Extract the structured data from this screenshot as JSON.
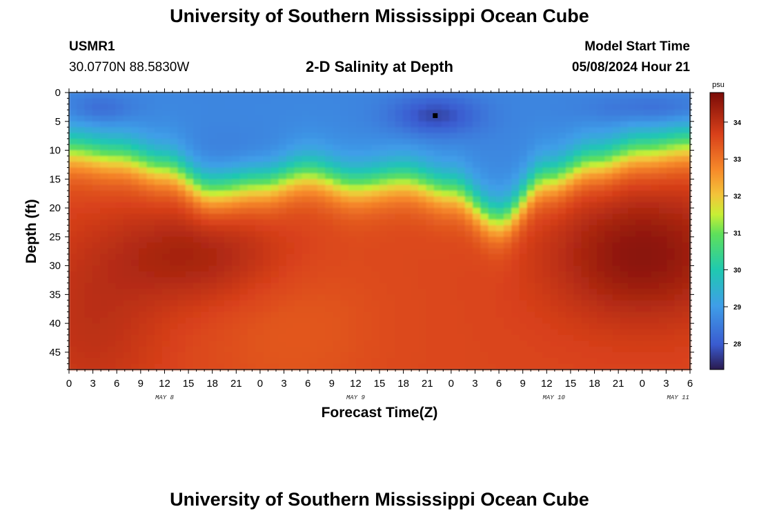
{
  "header": {
    "title": "University of Southern Mississippi Ocean Cube",
    "station_id": "USMR1",
    "coords": "30.0770N  88.5830W",
    "chart_title": "2-D Salinity at Depth",
    "model_start_label": "Model Start Time",
    "model_start_value": "05/08/2024 Hour 21"
  },
  "footer": {
    "title": "University of Southern Mississippi Ocean Cube"
  },
  "chart_data": {
    "type": "heatmap",
    "title": "2-D Salinity at Depth",
    "xlabel": "Forecast Time(Z)",
    "ylabel": "Depth (ft)",
    "x_tick_labels": [
      "0",
      "3",
      "6",
      "9",
      "12",
      "15",
      "18",
      "21",
      "0",
      "3",
      "6",
      "9",
      "12",
      "15",
      "18",
      "21",
      "0",
      "3",
      "6",
      "9",
      "12",
      "15",
      "18",
      "21",
      "0",
      "3",
      "6"
    ],
    "x_date_labels": [
      {
        "label": "MAY 8",
        "hour_index": 4
      },
      {
        "label": "MAY 9",
        "hour_index": 12
      },
      {
        "label": "MAY 10",
        "hour_index": 20.3
      },
      {
        "label": "MAY 11",
        "hour_index": 25.5
      }
    ],
    "xlim_hours": [
      0,
      78
    ],
    "y_ticks": [
      0,
      5,
      10,
      15,
      20,
      25,
      30,
      35,
      40,
      45
    ],
    "ylim": [
      0,
      48
    ],
    "y_inverted": true,
    "colorbar": {
      "label": "psu",
      "ticks": [
        28,
        29,
        30,
        31,
        32,
        33,
        34
      ],
      "range": [
        27.3,
        34.8
      ]
    },
    "halocline_depth_profile": {
      "description_hours": [
        0,
        6,
        12,
        18,
        24,
        30,
        36,
        42,
        48,
        54,
        60,
        66,
        72,
        78
      ],
      "depth_ft": [
        10,
        11,
        13,
        17,
        16,
        14,
        16,
        15,
        17,
        22,
        15,
        12,
        10,
        9
      ]
    },
    "marker": {
      "hour": 46,
      "depth_ft": 4
    }
  }
}
